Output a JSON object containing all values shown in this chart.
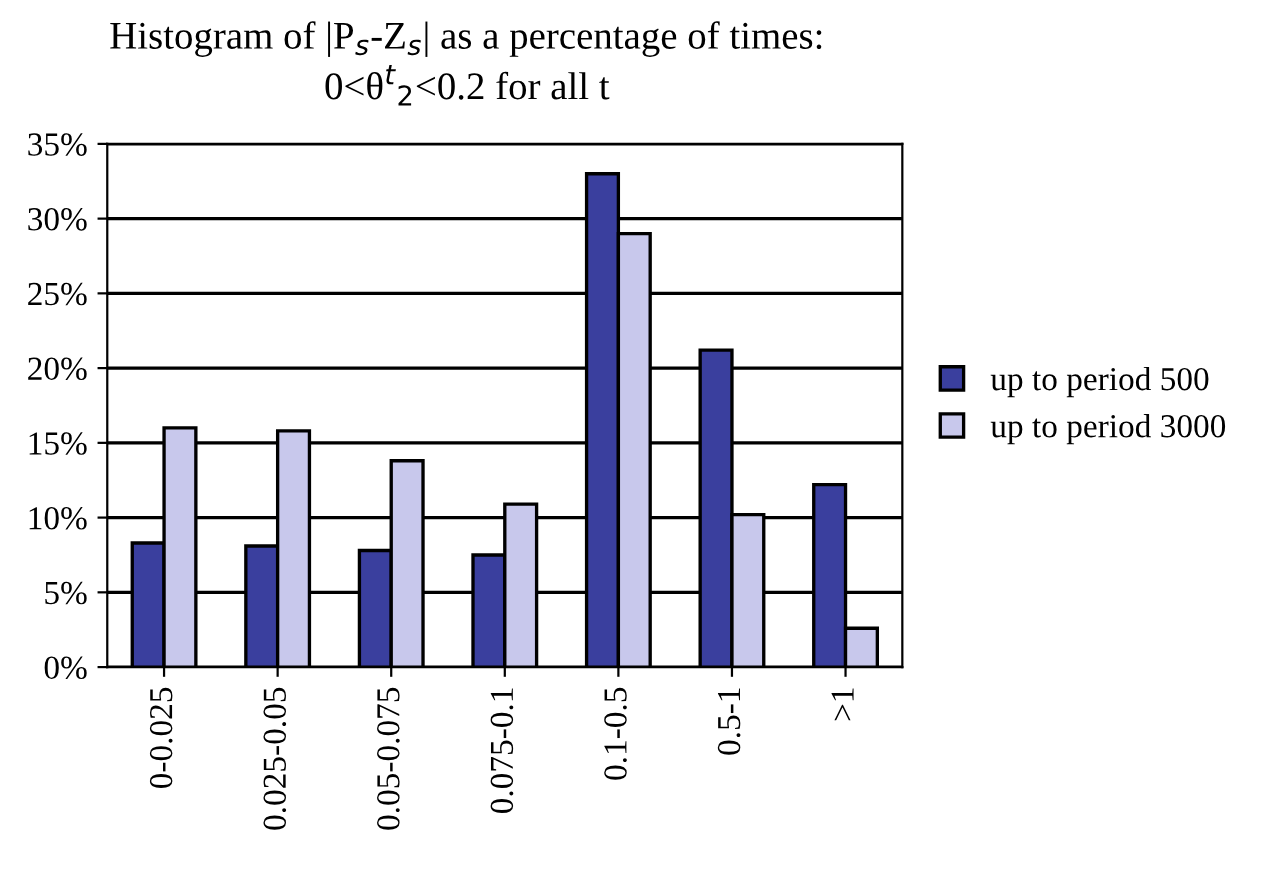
{
  "chart_data": {
    "type": "bar",
    "title": "Histogram of |P$_{s}$-Z$_{s}$| as a percentage of times:",
    "subtitle": "0<θ$^{t}$$_{2}$<0.2 for all t",
    "categories": [
      "0-0.025",
      "0.025-0.05",
      "0.05-0.075",
      "0.075-0.1",
      "0.1-0.5",
      "0.5-1",
      ">1"
    ],
    "series": [
      {
        "name": "up to period 500",
        "color": "#3a3f9e",
        "values": [
          8.3,
          8.1,
          7.8,
          7.5,
          33,
          21.2,
          12.2
        ]
      },
      {
        "name": "up to period 3000",
        "color": "#c8c8ec",
        "values": [
          16,
          15.8,
          13.8,
          10.9,
          29,
          10.2,
          2.6
        ]
      }
    ],
    "ylim": [
      0,
      35
    ],
    "yticks": [
      {
        "value": 0,
        "label": "0%"
      },
      {
        "value": 5,
        "label": "5%"
      },
      {
        "value": 10,
        "label": "10%"
      },
      {
        "value": 15,
        "label": "15%"
      },
      {
        "value": 20,
        "label": "20%"
      },
      {
        "value": 25,
        "label": "25%"
      },
      {
        "value": 30,
        "label": "30%"
      },
      {
        "value": 35,
        "label": "35%"
      }
    ],
    "grid": "y",
    "legend": "right"
  }
}
